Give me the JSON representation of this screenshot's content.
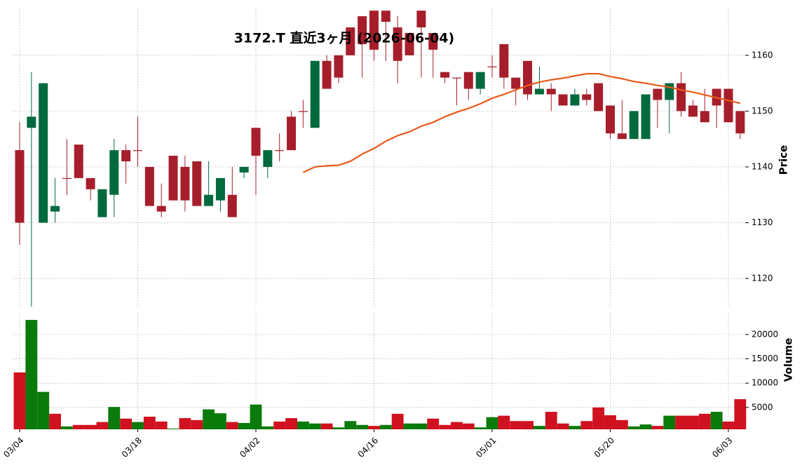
{
  "chart_data": {
    "type": "candlestick",
    "title": "3172.T  直近3ヶ月 (2026-06-04)",
    "categories": [
      "03/04",
      null,
      null,
      null,
      null,
      null,
      null,
      null,
      null,
      null,
      "03/18",
      null,
      null,
      null,
      null,
      null,
      null,
      null,
      null,
      null,
      "04/02",
      null,
      null,
      null,
      null,
      null,
      null,
      null,
      null,
      null,
      "04/16",
      null,
      null,
      null,
      null,
      null,
      null,
      null,
      null,
      null,
      "05/01",
      null,
      null,
      null,
      null,
      null,
      null,
      null,
      null,
      null,
      "05/20",
      null,
      null,
      null,
      null,
      null,
      null,
      null,
      null,
      null,
      "06/03",
      null
    ],
    "open": [
      1143,
      1147,
      1130,
      1132,
      1138,
      1144,
      1138,
      1131,
      1135,
      1143,
      1143,
      1140,
      1133,
      1142,
      1140,
      1141,
      1133,
      1134,
      1135,
      1139,
      1147,
      1140,
      1143,
      1149,
      1150,
      1147,
      1159,
      1160,
      1165,
      1167,
      1168,
      1168,
      1165,
      1164,
      1168,
      1164,
      1157,
      1156,
      1157,
      1154,
      1158,
      1162,
      1156,
      1159,
      1153,
      1154,
      1153,
      1151,
      1153,
      1155,
      1151,
      1146,
      1145,
      1145,
      1154,
      1152,
      1155,
      1151,
      1150,
      1154,
      1154,
      1150
    ],
    "high": [
      1148,
      1157,
      1155,
      1138,
      1145,
      1144,
      1138,
      1136,
      1145,
      1144,
      1149,
      1140,
      1137,
      1142,
      1142,
      1141,
      1141,
      1138,
      1140,
      1140,
      1147,
      1143,
      1146,
      1150,
      1152,
      1159,
      1160,
      1160,
      1165,
      1167,
      1168,
      1168,
      1167,
      1164,
      1168,
      1164,
      1157,
      1156,
      1157,
      1157,
      1160,
      1162,
      1156,
      1159,
      1158,
      1155,
      1153,
      1154,
      1154,
      1155,
      1151,
      1152,
      1150,
      1153,
      1154,
      1155,
      1157,
      1152,
      1154,
      1154,
      1154,
      1150
    ],
    "low": [
      1126,
      1115,
      1130,
      1130,
      1135,
      1138,
      1134,
      1131,
      1131,
      1137,
      1140,
      1133,
      1131,
      1134,
      1132,
      1133,
      1133,
      1132,
      1131,
      1138,
      1135,
      1138,
      1141,
      1143,
      1147,
      1147,
      1154,
      1155,
      1160,
      1156,
      1159,
      1159,
      1155,
      1160,
      1156,
      1156,
      1155,
      1151,
      1152,
      1153,
      1156,
      1154,
      1151,
      1152,
      1153,
      1150,
      1151,
      1151,
      1151,
      1150,
      1145,
      1145,
      1145,
      1145,
      1147,
      1146,
      1149,
      1149,
      1148,
      1147,
      1148,
      1145
    ],
    "close": [
      1130,
      1149,
      1155,
      1133,
      1137.9,
      1138,
      1136,
      1136,
      1143,
      1141,
      1142.9,
      1133,
      1132,
      1134,
      1134,
      1133,
      1135,
      1138,
      1131,
      1140,
      1142,
      1143,
      1142.9,
      1143,
      1149.9,
      1159,
      1154,
      1156,
      1160,
      1162,
      1161,
      1166,
      1159,
      1160,
      1165,
      1161,
      1156,
      1155.9,
      1154,
      1157,
      1157.9,
      1156,
      1154,
      1153,
      1154,
      1153,
      1151,
      1153,
      1152,
      1150,
      1146,
      1145,
      1150,
      1153,
      1152,
      1155,
      1150,
      1149,
      1148,
      1151,
      1148,
      1146
    ],
    "up_color": "#006a3e",
    "down_color": "#a61e2b",
    "moving_average": {
      "color": "#e8591a",
      "values": [
        null,
        null,
        null,
        null,
        null,
        null,
        null,
        null,
        null,
        null,
        null,
        null,
        null,
        null,
        null,
        null,
        null,
        null,
        null,
        null,
        null,
        null,
        null,
        null,
        1139,
        1140,
        1140.2,
        1140.3,
        1141,
        1142.3,
        1143.3,
        1144.6,
        1145.6,
        1146.3,
        1147.3,
        1148,
        1149,
        1149.8,
        1150.5,
        1151.3,
        1152.3,
        1153,
        1153.8,
        1154.6,
        1155.2,
        1155.6,
        1155.9,
        1156.3,
        1156.7,
        1156.7,
        1156.2,
        1155.8,
        1155.3,
        1155,
        1154.6,
        1154.3,
        1153.8,
        1153.4,
        1152.9,
        1152.4,
        1151.9,
        1151.4
      ]
    },
    "ylabel": "Price",
    "ylim": [
      1114.6,
      1168.4
    ],
    "yticks": [
      1120,
      1130,
      1140,
      1150,
      1160
    ],
    "grid": true,
    "volume": {
      "ylabel": "Volume",
      "ylim": [
        500,
        24600
      ],
      "yticks": [
        5000,
        10000,
        15000,
        20000
      ],
      "values": [
        12200,
        23000,
        8200,
        3700,
        1100,
        1400,
        1400,
        2000,
        5100,
        2700,
        2000,
        3100,
        2100,
        650,
        2800,
        2400,
        4600,
        3800,
        2000,
        1800,
        5600,
        1100,
        2100,
        2800,
        2100,
        1700,
        1700,
        900,
        2200,
        1400,
        1200,
        1400,
        3700,
        1700,
        1700,
        2700,
        1400,
        2000,
        1700,
        900,
        3000,
        3300,
        2200,
        2200,
        1200,
        4100,
        1700,
        1200,
        2200,
        5000,
        3400,
        2400,
        1100,
        1500,
        1200,
        3300,
        3300,
        3300,
        3700,
        4100,
        2100,
        6700
      ],
      "colors": [
        "#d0111f",
        "#0a7a0a",
        "#0a7a0a",
        "#d0111f",
        "#0a7a0a",
        "#d0111f",
        "#d0111f",
        "#d0111f",
        "#0a7a0a",
        "#d0111f",
        "#0a7a0a",
        "#d0111f",
        "#d0111f",
        "#0a7a0a",
        "#d0111f",
        "#d0111f",
        "#0a7a0a",
        "#0a7a0a",
        "#d0111f",
        "#0a7a0a",
        "#0a7a0a",
        "#0a7a0a",
        "#d0111f",
        "#d0111f",
        "#0a7a0a",
        "#0a7a0a",
        "#d0111f",
        "#0a7a0a",
        "#0a7a0a",
        "#0a7a0a",
        "#d0111f",
        "#0a7a0a",
        "#d0111f",
        "#0a7a0a",
        "#0a7a0a",
        "#d0111f",
        "#d0111f",
        "#d0111f",
        "#d0111f",
        "#0a7a0a",
        "#0a7a0a",
        "#d0111f",
        "#d0111f",
        "#d0111f",
        "#0a7a0a",
        "#d0111f",
        "#d0111f",
        "#0a7a0a",
        "#d0111f",
        "#d0111f",
        "#d0111f",
        "#d0111f",
        "#0a7a0a",
        "#0a7a0a",
        "#d0111f",
        "#0a7a0a",
        "#d0111f",
        "#d0111f",
        "#d0111f",
        "#0a7a0a",
        "#d0111f",
        "#d0111f"
      ]
    }
  }
}
